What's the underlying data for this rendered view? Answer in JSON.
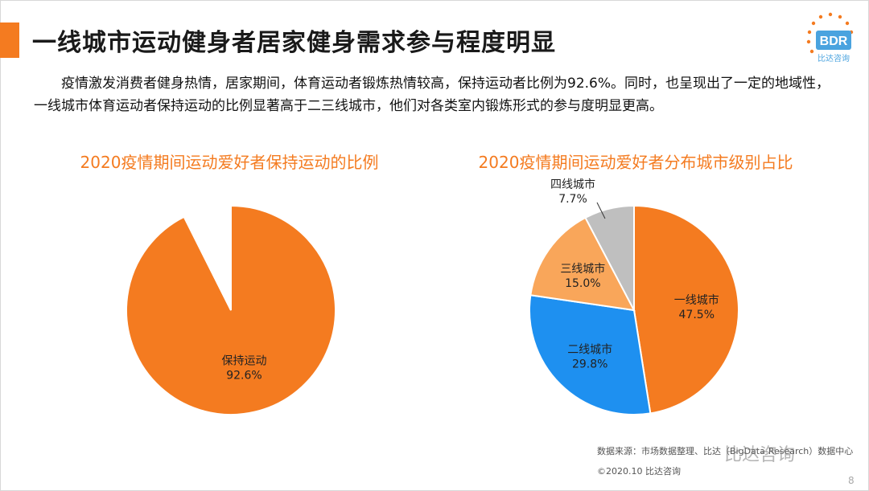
{
  "header": {
    "title": "一线城市运动健身者居家健身需求参与程度明显"
  },
  "logo": {
    "text": "BDR",
    "subtext": "比达咨询",
    "icon": "bdr-logo"
  },
  "intro": "疫情激发消费者健身热情，居家期间，体育运动者锻炼热情较高，保持运动者比例为92.6%。同时，也呈现出了一定的地域性，一线城市体育运动者保持运动的比例显著高于二三线城市，他们对各类室内锻炼形式的参与度明显更高。",
  "chart_data": [
    {
      "type": "pie",
      "title": "2020疫情期间运动爱好者保持运动的比例",
      "slices": [
        {
          "label": "保持运动",
          "value": 92.6,
          "display": "92.6%",
          "color": "#f47b20",
          "shown": true
        },
        {
          "label": "",
          "value": 7.4,
          "display": "",
          "color": "#ffffff",
          "shown": false
        }
      ]
    },
    {
      "type": "pie",
      "title": "2020疫情期间运动爱好者分布城市级别占比",
      "slices": [
        {
          "label": "一线城市",
          "value": 47.5,
          "display": "47.5%",
          "color": "#f47b20"
        },
        {
          "label": "二线城市",
          "value": 29.8,
          "display": "29.8%",
          "color": "#1e90f0"
        },
        {
          "label": "三线城市",
          "value": 15.0,
          "display": "15.0%",
          "color": "#f9a65a"
        },
        {
          "label": "四线城市",
          "value": 7.7,
          "display": "7.7%",
          "color": "#bfbfbf"
        }
      ]
    }
  ],
  "footer": {
    "source": "数据来源：市场数据整理、比达（BigData-Research）数据中心",
    "copyright": "©2020.10 比达咨询",
    "page": "8",
    "watermark": "比达咨询"
  }
}
